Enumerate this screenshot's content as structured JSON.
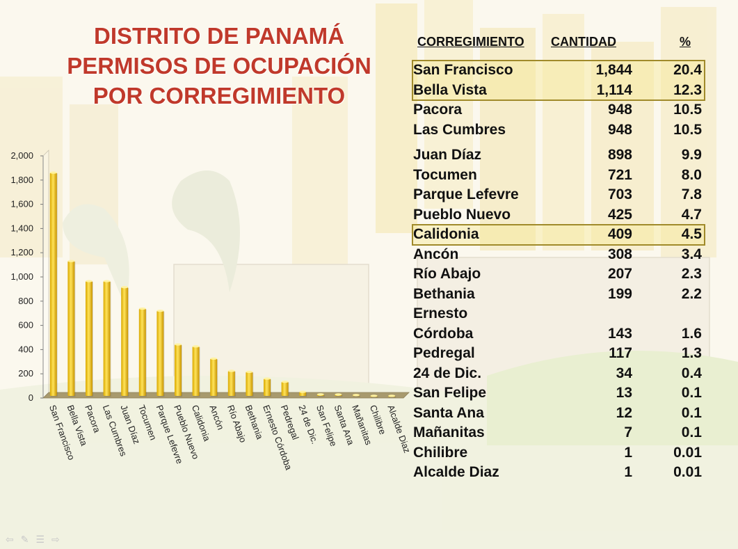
{
  "title": {
    "line1": "DISTRITO DE PANAMÁ",
    "line2": "PERMISOS DE OCUPACIÓN",
    "line3": "POR CORREGIMIENTO"
  },
  "table": {
    "headers": {
      "name": "CORREGIMIENTO",
      "count": "CANTIDAD",
      "pct": "%"
    },
    "rows": [
      {
        "name": "San Francisco",
        "count": "1,844",
        "pct": "20.4",
        "highlight": "group1"
      },
      {
        "name": "Bella Vista",
        "count": "1,114",
        "pct": "12.3",
        "highlight": "group1"
      },
      {
        "name": "Pacora",
        "count": "948",
        "pct": "10.5"
      },
      {
        "name": "Las Cumbres",
        "count": "948",
        "pct": "10.5"
      },
      {
        "name": "Juan Díaz",
        "count": "898",
        "pct": "9.9"
      },
      {
        "name": "Tocumen",
        "count": "721",
        "pct": "8.0"
      },
      {
        "name": "Parque Lefevre",
        "count": "703",
        "pct": "7.8"
      },
      {
        "name": "Pueblo Nuevo",
        "count": "425",
        "pct": "4.7"
      },
      {
        "name": "Calidonia",
        "count": "409",
        "pct": "4.5",
        "highlight": "group2"
      },
      {
        "name": "Ancón",
        "count": "308",
        "pct": "3.4"
      },
      {
        "name": "Río Abajo",
        "count": "207",
        "pct": "2.3"
      },
      {
        "name": "Bethania",
        "count": "199",
        "pct": "2.2"
      },
      {
        "name": "Ernesto",
        "count": "",
        "pct": ""
      },
      {
        "name": "Córdoba",
        "count": "143",
        "pct": "1.6"
      },
      {
        "name": "Pedregal",
        "count": "117",
        "pct": "1.3"
      },
      {
        "name": "24 de Dic.",
        "count": "34",
        "pct": "0.4"
      },
      {
        "name": "San Felipe",
        "count": "13",
        "pct": "0.1"
      },
      {
        "name": "Santa Ana",
        "count": "12",
        "pct": "0.1"
      },
      {
        "name": "Mañanitas",
        "count": "7",
        "pct": "0.1"
      },
      {
        "name": "Chilibre",
        "count": "1",
        "pct": "0.01"
      },
      {
        "name": "Alcalde Diaz",
        "count": "1",
        "pct": "0.01"
      }
    ]
  },
  "chart_data": {
    "type": "bar",
    "categories": [
      "San Francisco",
      "Bella Vista",
      "Pacora",
      "Las Cumbres",
      "Juan Díaz",
      "Tocumen",
      "Parque Lefevre",
      "Pueblo Nuevo",
      "Calidonia",
      "Ancón",
      "Río Abajo",
      "Bethania",
      "Ernesto Córdoba",
      "Pedregal",
      "24 de Dic.",
      "San Felipe",
      "Santa Ana",
      "Mañanitas",
      "Chilibre",
      "Alcalde Diaz"
    ],
    "values": [
      1844,
      1114,
      948,
      948,
      898,
      721,
      703,
      425,
      409,
      308,
      207,
      199,
      143,
      117,
      34,
      13,
      12,
      7,
      1,
      1
    ],
    "yticks": [
      "0",
      "200",
      "400",
      "600",
      "800",
      "1,000",
      "1,200",
      "1,400",
      "1,600",
      "1,800",
      "2,000"
    ],
    "ylim": [
      0,
      2000
    ],
    "grid": false,
    "bar_color": "#f2c200",
    "title": "",
    "xlabel": "",
    "ylabel": ""
  },
  "nav_icons": [
    "back-arrow-icon",
    "pen-icon",
    "menu-icon",
    "forward-arrow-icon"
  ]
}
